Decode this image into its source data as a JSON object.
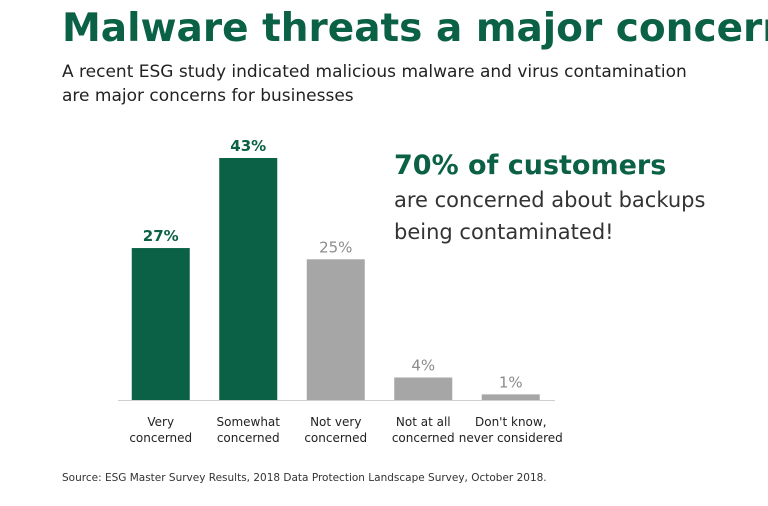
{
  "chart_data": {
    "type": "bar",
    "title": "Malware threats a major concern",
    "subtitle": "A recent ESG study indicated malicious malware and virus contamination\nare major concerns for businesses",
    "annotation": {
      "headline": "70% of customers",
      "body": "are concerned about backups\nbeing contaminated!"
    },
    "categories": [
      "Very\nconcerned",
      "Somewhat\nconcerned",
      "Not very\nconcerned",
      "Not at all\nconcerned",
      "Don't know,\nnever considered"
    ],
    "values": [
      27,
      43,
      25,
      4,
      1
    ],
    "value_labels": [
      "27%",
      "43%",
      "25%",
      "4%",
      "1%"
    ],
    "colors": [
      "#0b6145",
      "#0b6145",
      "#a6a6a6",
      "#a6a6a6",
      "#a6a6a6"
    ],
    "source": "Source: ESG Master Survey Results, 2018 Data Protection Landscape Survey, October 2018."
  }
}
